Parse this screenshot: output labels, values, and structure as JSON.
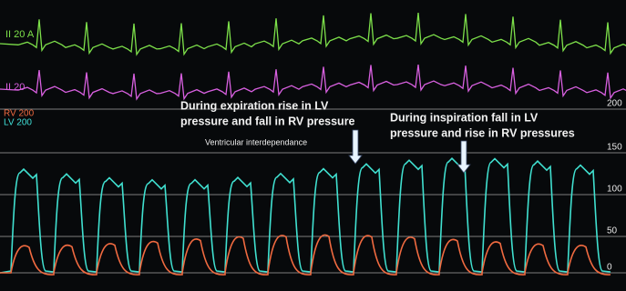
{
  "channels": {
    "ecg1": "II 20 A",
    "ecg2": "II 20",
    "rv": "RV 200",
    "lv": "LV 200"
  },
  "annotations": {
    "expiration": [
      "During expiration rise in LV",
      "pressure and fall in RV pressure"
    ],
    "interdependence": "Ventricular interdependance",
    "inspiration": [
      "During inspiration fall in LV",
      "pressure and rise in RV pressures"
    ]
  },
  "scale": [
    200,
    150,
    100,
    50,
    0
  ]
}
